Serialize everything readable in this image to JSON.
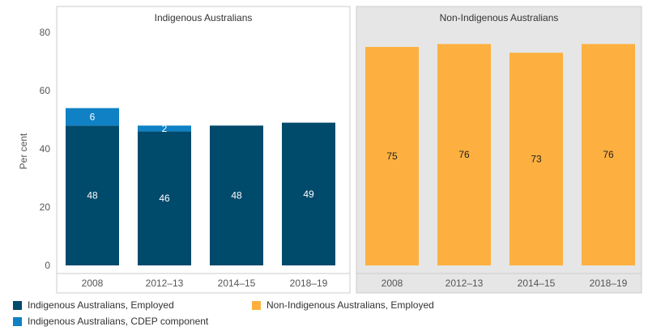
{
  "colors": {
    "indigenous_employed": "#004a6c",
    "indigenous_cdep": "#0f81c4",
    "non_indigenous_employed": "#fdb03f",
    "non_indigenous_panel_bg": "#e6e6e6",
    "panel_border": "#cccccc"
  },
  "chart_data": {
    "type": "bar",
    "stacked": true,
    "ylabel": "Per cent",
    "ylim": [
      0,
      80
    ],
    "yticks": [
      "0",
      "20",
      "40",
      "60",
      "80"
    ],
    "grid": false,
    "legend_position": "bottom",
    "panels": [
      {
        "title": "Indigenous Australians",
        "categories": [
          "2008",
          "2012–13",
          "2014–15",
          "2018–19"
        ],
        "series": [
          {
            "name": "Indigenous Australians, Employed",
            "values": [
              48,
              46,
              48,
              49
            ],
            "labels": [
              "48",
              "46",
              "48",
              "49"
            ]
          },
          {
            "name": "Indigenous Australians, CDEP component",
            "values": [
              6,
              2,
              null,
              null
            ],
            "labels": [
              "6",
              "2",
              "",
              ""
            ]
          }
        ]
      },
      {
        "title": "Non-Indigenous Australians",
        "categories": [
          "2008",
          "2012–13",
          "2014–15",
          "2018–19"
        ],
        "series": [
          {
            "name": "Non-Indigenous Australians, Employed",
            "values": [
              75,
              76,
              73,
              76
            ],
            "labels": [
              "75",
              "76",
              "73",
              "76"
            ]
          }
        ]
      }
    ]
  },
  "legend": {
    "items": [
      {
        "label": "Indigenous Australians, Employed",
        "color_key": "indigenous_employed"
      },
      {
        "label": "Indigenous Australians, CDEP component",
        "color_key": "indigenous_cdep"
      },
      {
        "label": "Non-Indigenous Australians, Employed",
        "color_key": "non_indigenous_employed"
      }
    ]
  }
}
